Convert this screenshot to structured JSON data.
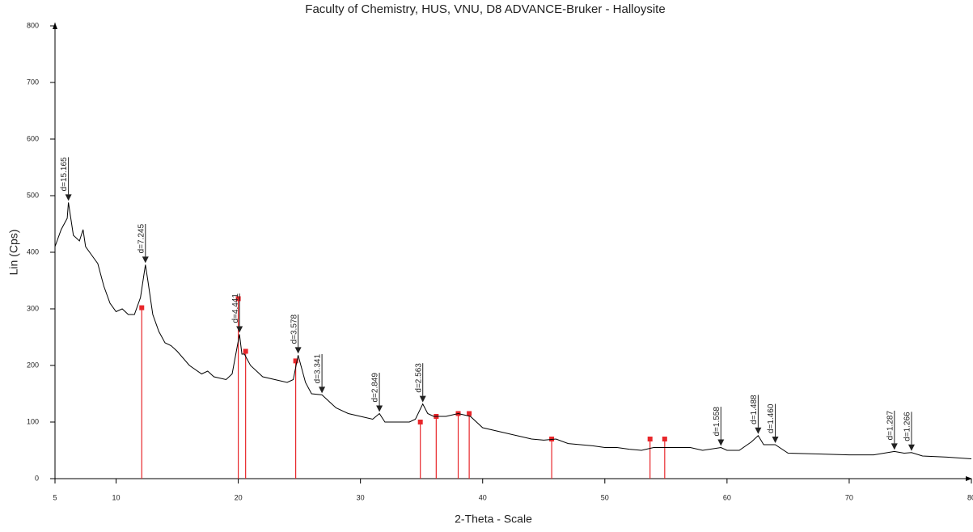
{
  "chart_data": {
    "type": "line",
    "title": "Faculty of Chemistry, HUS, VNU, D8 ADVANCE-Bruker - Halloysite",
    "xlabel": "2-Theta - Scale",
    "ylabel": "Lin (Cps)",
    "color": "#000000",
    "x": [
      5,
      5.5,
      6,
      6.1,
      6.5,
      7,
      7.3,
      7.5,
      8,
      8.5,
      9,
      9.5,
      10,
      10.5,
      11,
      11.5,
      12,
      12.4,
      12.6,
      13,
      13.5,
      14,
      14.5,
      15,
      16,
      17,
      17.5,
      18,
      19,
      19.5,
      20.1,
      20.3,
      20.5,
      21,
      22,
      23,
      24,
      24.5,
      24.9,
      25.5,
      26,
      26.85,
      27.5,
      28,
      29,
      30,
      31,
      31.55,
      32,
      33,
      34,
      34.5,
      35.1,
      35.5,
      36,
      37,
      38,
      39,
      40,
      41,
      42,
      43,
      44,
      45,
      46,
      47,
      48,
      49,
      50,
      51,
      52,
      53,
      54,
      55,
      56,
      57,
      58,
      59.5,
      60,
      61,
      62,
      62.55,
      63,
      63.95,
      65,
      70,
      72,
      73.7,
      74.5,
      75.1,
      76,
      78,
      80
    ],
    "values": [
      410,
      440,
      460,
      488,
      430,
      420,
      440,
      410,
      395,
      380,
      340,
      310,
      295,
      300,
      290,
      290,
      320,
      378,
      350,
      290,
      260,
      240,
      235,
      225,
      200,
      185,
      190,
      180,
      175,
      185,
      255,
      220,
      220,
      200,
      180,
      175,
      170,
      175,
      218,
      170,
      150,
      148,
      135,
      125,
      115,
      110,
      105,
      115,
      100,
      100,
      100,
      105,
      132,
      115,
      110,
      110,
      115,
      110,
      90,
      85,
      80,
      75,
      70,
      68,
      70,
      62,
      60,
      58,
      55,
      55,
      52,
      50,
      55,
      55,
      55,
      55,
      50,
      55,
      50,
      50,
      65,
      76,
      60,
      60,
      45,
      42,
      42,
      48,
      45,
      46,
      40,
      38,
      35
    ],
    "annotations": [
      {
        "label": "d=15.165",
        "x": 6.1,
        "y": 488
      },
      {
        "label": "d=7.245",
        "x": 12.4,
        "y": 378
      },
      {
        "label": "d=4.441",
        "x": 20.1,
        "y": 255
      },
      {
        "label": "d=3.578",
        "x": 24.9,
        "y": 218
      },
      {
        "label": "d=3.341",
        "x": 26.85,
        "y": 148
      },
      {
        "label": "d=2.849",
        "x": 31.55,
        "y": 115
      },
      {
        "label": "d=2.563",
        "x": 35.1,
        "y": 132
      },
      {
        "label": "d=1.558",
        "x": 59.5,
        "y": 55
      },
      {
        "label": "d=1.488",
        "x": 62.55,
        "y": 76
      },
      {
        "label": "d=1.460",
        "x": 63.95,
        "y": 60
      },
      {
        "label": "d=1.287",
        "x": 73.7,
        "y": 48
      },
      {
        "label": "d=1.266",
        "x": 75.1,
        "y": 46
      }
    ],
    "reference_lines": {
      "color": "#e8262a",
      "x": [
        12.1,
        20.0,
        20.6,
        24.7,
        34.9,
        36.2,
        38.0,
        38.9,
        45.65,
        53.7,
        54.9
      ],
      "values": [
        302,
        318,
        225,
        208,
        100,
        110,
        115,
        115,
        70,
        70,
        70
      ]
    },
    "xlim": [
      5,
      80
    ],
    "xticks": [
      5,
      10,
      20,
      30,
      40,
      50,
      60,
      70,
      80
    ],
    "ylim": [
      0,
      800
    ],
    "yticks": [
      0,
      100,
      200,
      300,
      400,
      500,
      600,
      700,
      800
    ]
  }
}
